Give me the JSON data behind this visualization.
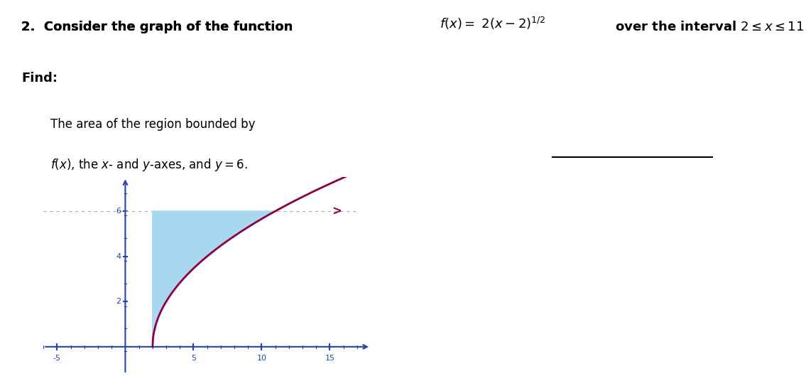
{
  "title_line1": "2.  Consider the graph of the function",
  "func_label": "f(x) = 2(x − 2)^{1/2}",
  "title_line2": "over the interval 2 ≤ x ≤ 11",
  "find_label": "Find:",
  "area_text": "The area of the region bounded by",
  "area_text2": "f(x), the x- and y-axes, and y = 6.",
  "x_start": 2,
  "x_end": 11,
  "x_curve_end": 17,
  "y_line": 6,
  "x_min": -6,
  "x_max": 18,
  "y_min": -1.2,
  "y_max": 7.5,
  "shade_color": "#a8d8f0",
  "curve_color": "#8b0045",
  "axis_color": "#2244aa",
  "dashed_color": "#b0b0b0",
  "text_color": "#000000",
  "bg_color": "#ffffff",
  "x_ticks": [
    -5,
    5,
    10,
    15
  ],
  "y_ticks": [
    2,
    4,
    6
  ],
  "minor_x_step": 1,
  "minor_y_step": 1,
  "axis_lw": 1.5,
  "curve_lw": 2.0
}
